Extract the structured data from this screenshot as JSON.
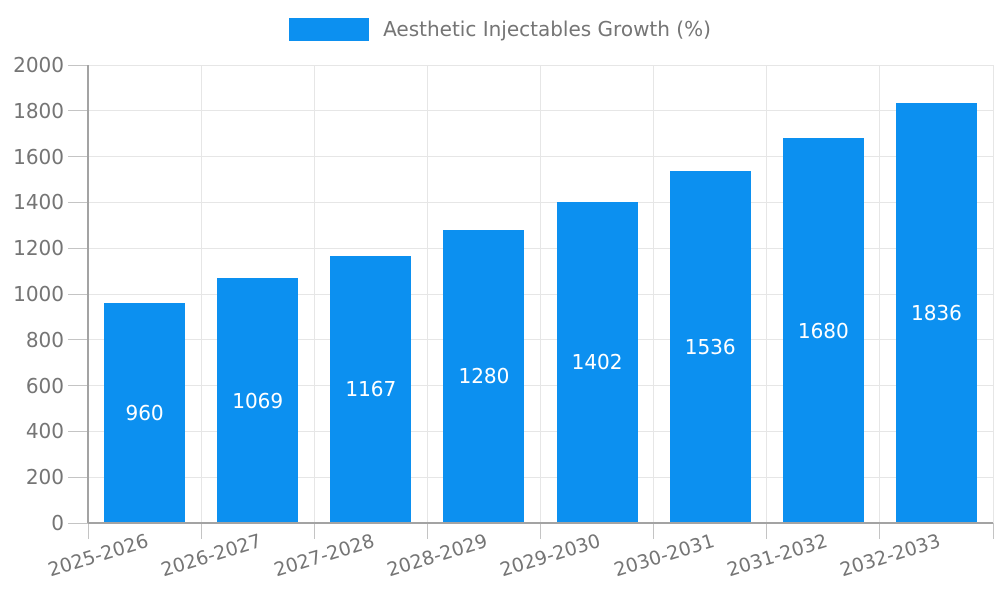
{
  "legend": {
    "label": "Aesthetic Injectables Growth (%)"
  },
  "chart_data": {
    "type": "bar",
    "title": "Aesthetic Injectables Growth (%)",
    "categories": [
      "2025-2026",
      "2026-2027",
      "2027-2028",
      "2028-2029",
      "2029-2030",
      "2030-2031",
      "2031-2032",
      "2032-2033"
    ],
    "values": [
      960,
      1069,
      1167,
      1280,
      1402,
      1536,
      1680,
      1836
    ],
    "value_labels": [
      "960",
      "1069",
      "1167",
      "1280",
      "1402",
      "1536",
      "1680",
      "1836"
    ],
    "xlabel": "",
    "ylabel": "",
    "ylim": [
      0,
      2000
    ],
    "ytick_step": 200,
    "yticks": [
      0,
      200,
      400,
      600,
      800,
      1000,
      1200,
      1400,
      1600,
      1800,
      2000
    ],
    "grid": true,
    "legend_position": "top-center",
    "xtick_rotation_deg": -17,
    "colors": {
      "bar": "#0C90F0",
      "value_label": "#ffffff",
      "axis_text": "#757575",
      "grid_line": "#e6e6e6",
      "axis_line": "#a3a3a3",
      "tick_line": "#c4c4c4",
      "background": "#ffffff"
    }
  }
}
